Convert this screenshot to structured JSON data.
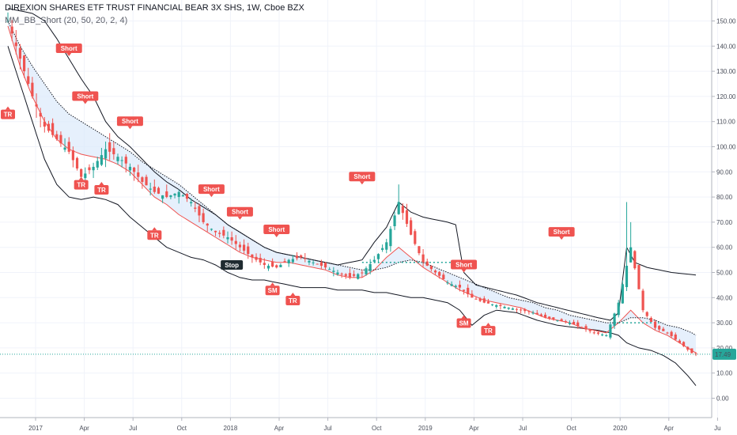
{
  "header": {
    "symbol_line": "DIREXION SHARES ETF TRUST FINANCIAL BEAR 3X SHS, 1W, Cboe BZX",
    "study_line": "MM_BB_Short (20, 50, 20, 2, 4)"
  },
  "colors": {
    "up": "#26a69a",
    "down": "#ef5350",
    "band": "#131722",
    "fill": "#dbe9fb",
    "ma_red": "#ef5350",
    "last_price": "#26a69a",
    "teal_dots": "#26a69a"
  },
  "last_price_label": "17.49",
  "chart_data": {
    "type": "candlestick",
    "title": "DIREXION SHARES ETF TRUST FINANCIAL BEAR 3X SHS, 1W, Cboe BZX",
    "ylim": [
      -5,
      160
    ],
    "yticks": [
      "0.00",
      "10.00",
      "20.00",
      "30.00",
      "40.00",
      "50.00",
      "60.00",
      "70.00",
      "80.00",
      "90.00",
      "100.00",
      "110.00",
      "120.00",
      "130.00",
      "140.00",
      "150.00"
    ],
    "xticks": [
      "2017",
      "Apr",
      "Jul",
      "Oct",
      "2018",
      "Apr",
      "Jul",
      "Oct",
      "2019",
      "Apr",
      "Jul",
      "Oct",
      "2020",
      "Apr",
      "Ju"
    ],
    "grid": true,
    "last_price": 17.49,
    "close_path": [
      [
        0,
        150
      ],
      [
        3,
        135
      ],
      [
        6,
        120
      ],
      [
        9,
        108
      ],
      [
        12,
        103
      ],
      [
        15,
        98
      ],
      [
        18,
        88
      ],
      [
        21,
        92
      ],
      [
        24,
        99
      ],
      [
        27,
        96
      ],
      [
        30,
        92
      ],
      [
        33,
        86
      ],
      [
        36,
        82
      ],
      [
        39,
        80
      ],
      [
        42,
        82
      ],
      [
        45,
        78
      ],
      [
        48,
        70
      ],
      [
        51,
        66
      ],
      [
        54,
        64
      ],
      [
        57,
        60
      ],
      [
        60,
        56
      ],
      [
        63,
        53
      ],
      [
        66,
        52
      ],
      [
        69,
        55
      ],
      [
        72,
        56
      ],
      [
        75,
        54
      ],
      [
        78,
        52
      ],
      [
        81,
        50
      ],
      [
        84,
        48
      ],
      [
        87,
        50
      ],
      [
        90,
        55
      ],
      [
        93,
        62
      ],
      [
        96,
        78
      ],
      [
        99,
        65
      ],
      [
        102,
        54
      ],
      [
        105,
        50
      ],
      [
        108,
        46
      ],
      [
        111,
        44
      ],
      [
        114,
        40
      ],
      [
        117,
        38
      ],
      [
        120,
        37
      ],
      [
        123,
        36
      ],
      [
        126,
        35
      ],
      [
        129,
        34
      ],
      [
        132,
        32
      ],
      [
        135,
        31
      ],
      [
        138,
        30
      ],
      [
        141,
        28
      ],
      [
        144,
        26
      ],
      [
        147,
        25
      ],
      [
        150,
        38
      ],
      [
        153,
        60
      ],
      [
        156,
        35
      ],
      [
        159,
        28
      ],
      [
        162,
        26
      ],
      [
        165,
        22
      ],
      [
        168,
        18
      ],
      [
        169,
        17.49
      ]
    ],
    "wick_spikes": [
      [
        96,
        85
      ],
      [
        152,
        78
      ],
      [
        153,
        70
      ]
    ],
    "upper_band": [
      [
        0,
        155
      ],
      [
        6,
        153
      ],
      [
        9,
        150
      ],
      [
        12,
        143
      ],
      [
        15,
        135
      ],
      [
        18,
        127
      ],
      [
        21,
        120
      ],
      [
        24,
        110
      ],
      [
        27,
        104
      ],
      [
        30,
        100
      ],
      [
        33,
        95
      ],
      [
        36,
        90
      ],
      [
        39,
        86
      ],
      [
        42,
        83
      ],
      [
        45,
        79
      ],
      [
        48,
        76
      ],
      [
        51,
        73
      ],
      [
        54,
        69
      ],
      [
        57,
        66
      ],
      [
        60,
        63
      ],
      [
        63,
        60
      ],
      [
        66,
        58
      ],
      [
        69,
        57
      ],
      [
        72,
        56
      ],
      [
        75,
        55
      ],
      [
        78,
        54
      ],
      [
        81,
        53
      ],
      [
        84,
        54
      ],
      [
        87,
        55
      ],
      [
        90,
        62
      ],
      [
        93,
        68
      ],
      [
        96,
        78
      ],
      [
        99,
        74
      ],
      [
        102,
        72
      ],
      [
        105,
        71
      ],
      [
        108,
        70
      ],
      [
        110,
        69
      ],
      [
        112,
        50
      ],
      [
        115,
        45
      ],
      [
        120,
        43
      ],
      [
        125,
        41
      ],
      [
        130,
        38
      ],
      [
        135,
        36
      ],
      [
        140,
        34
      ],
      [
        145,
        32
      ],
      [
        148,
        31
      ],
      [
        150,
        34
      ],
      [
        152,
        60
      ],
      [
        154,
        54
      ],
      [
        157,
        52
      ],
      [
        160,
        51
      ],
      [
        163,
        50
      ],
      [
        166,
        49.5
      ],
      [
        169,
        49
      ]
    ],
    "lower_band": [
      [
        0,
        140
      ],
      [
        3,
        125
      ],
      [
        6,
        110
      ],
      [
        9,
        95
      ],
      [
        12,
        85
      ],
      [
        15,
        80
      ],
      [
        18,
        79
      ],
      [
        21,
        80
      ],
      [
        24,
        79
      ],
      [
        27,
        77
      ],
      [
        30,
        72
      ],
      [
        33,
        68
      ],
      [
        36,
        64
      ],
      [
        39,
        60
      ],
      [
        42,
        58
      ],
      [
        45,
        56
      ],
      [
        48,
        55
      ],
      [
        51,
        53
      ],
      [
        54,
        50
      ],
      [
        57,
        48
      ],
      [
        60,
        47
      ],
      [
        63,
        47
      ],
      [
        66,
        46
      ],
      [
        69,
        45
      ],
      [
        72,
        44
      ],
      [
        75,
        44
      ],
      [
        78,
        44
      ],
      [
        81,
        43
      ],
      [
        84,
        43
      ],
      [
        87,
        43
      ],
      [
        90,
        42
      ],
      [
        93,
        42
      ],
      [
        96,
        41
      ],
      [
        99,
        40
      ],
      [
        102,
        40
      ],
      [
        105,
        39
      ],
      [
        108,
        38
      ],
      [
        111,
        35
      ],
      [
        114,
        29
      ],
      [
        117,
        33
      ],
      [
        120,
        35
      ],
      [
        125,
        34
      ],
      [
        130,
        31
      ],
      [
        135,
        29
      ],
      [
        140,
        28
      ],
      [
        145,
        27
      ],
      [
        148,
        26
      ],
      [
        150,
        25
      ],
      [
        152,
        22
      ],
      [
        155,
        20
      ],
      [
        158,
        19
      ],
      [
        161,
        17
      ],
      [
        164,
        14
      ],
      [
        167,
        9
      ],
      [
        169,
        5
      ]
    ],
    "ma_fast": [
      [
        0,
        148
      ],
      [
        3,
        132
      ],
      [
        6,
        120
      ],
      [
        9,
        110
      ],
      [
        12,
        103
      ],
      [
        15,
        99
      ],
      [
        18,
        97
      ],
      [
        21,
        96
      ],
      [
        24,
        95
      ],
      [
        27,
        93
      ],
      [
        30,
        90
      ],
      [
        33,
        85
      ],
      [
        36,
        80
      ],
      [
        39,
        77
      ],
      [
        42,
        73
      ],
      [
        45,
        70
      ],
      [
        48,
        67
      ],
      [
        51,
        64
      ],
      [
        54,
        61
      ],
      [
        57,
        58
      ],
      [
        60,
        56
      ],
      [
        63,
        55
      ],
      [
        66,
        54
      ],
      [
        69,
        54
      ],
      [
        72,
        53
      ],
      [
        75,
        52
      ],
      [
        78,
        51
      ],
      [
        81,
        49
      ],
      [
        84,
        48
      ],
      [
        87,
        48
      ],
      [
        90,
        51
      ],
      [
        93,
        56
      ],
      [
        96,
        60
      ],
      [
        99,
        56
      ],
      [
        102,
        52
      ],
      [
        105,
        49
      ],
      [
        108,
        46
      ],
      [
        111,
        43
      ],
      [
        114,
        41
      ],
      [
        117,
        39
      ],
      [
        120,
        38
      ],
      [
        123,
        37
      ],
      [
        126,
        36
      ],
      [
        129,
        34
      ],
      [
        132,
        32
      ],
      [
        135,
        31
      ],
      [
        138,
        30
      ],
      [
        141,
        28
      ],
      [
        144,
        27
      ],
      [
        147,
        26
      ],
      [
        150,
        30
      ],
      [
        153,
        35
      ],
      [
        156,
        30
      ],
      [
        159,
        27
      ],
      [
        162,
        25
      ],
      [
        165,
        22
      ],
      [
        168,
        19
      ],
      [
        169,
        18
      ]
    ],
    "ma_slow": [
      [
        0,
        150
      ],
      [
        3,
        140
      ],
      [
        6,
        132
      ],
      [
        9,
        125
      ],
      [
        12,
        118
      ],
      [
        15,
        113
      ],
      [
        18,
        110
      ],
      [
        21,
        107
      ],
      [
        24,
        104
      ],
      [
        27,
        101
      ],
      [
        30,
        98
      ],
      [
        33,
        94
      ],
      [
        36,
        91
      ],
      [
        39,
        88
      ],
      [
        42,
        85
      ],
      [
        45,
        81
      ],
      [
        48,
        77
      ],
      [
        51,
        73
      ],
      [
        54,
        69
      ],
      [
        57,
        66
      ],
      [
        60,
        63
      ],
      [
        63,
        60
      ],
      [
        66,
        58
      ],
      [
        69,
        57
      ],
      [
        72,
        56
      ],
      [
        75,
        55
      ],
      [
        78,
        54
      ],
      [
        81,
        53
      ],
      [
        84,
        52
      ],
      [
        87,
        51
      ],
      [
        90,
        51
      ],
      [
        93,
        52
      ],
      [
        96,
        54
      ],
      [
        99,
        55
      ],
      [
        102,
        54
      ],
      [
        105,
        52
      ],
      [
        108,
        50
      ],
      [
        111,
        48
      ],
      [
        114,
        46
      ],
      [
        117,
        44
      ],
      [
        120,
        42
      ],
      [
        123,
        40
      ],
      [
        126,
        39
      ],
      [
        129,
        38
      ],
      [
        132,
        36
      ],
      [
        135,
        35
      ],
      [
        138,
        33
      ],
      [
        141,
        32
      ],
      [
        144,
        31
      ],
      [
        147,
        30
      ],
      [
        150,
        30
      ],
      [
        153,
        32
      ],
      [
        156,
        32
      ],
      [
        159,
        31
      ],
      [
        162,
        29
      ],
      [
        165,
        28
      ],
      [
        168,
        26
      ],
      [
        169,
        25
      ]
    ],
    "annotations": [
      {
        "text": "TR",
        "i": 0,
        "y": 116,
        "pos": "below"
      },
      {
        "text": "Short",
        "i": 15,
        "y": 136,
        "pos": "above"
      },
      {
        "text": "Short",
        "i": 19,
        "y": 117,
        "pos": "above"
      },
      {
        "text": "Short",
        "i": 30,
        "y": 107,
        "pos": "above"
      },
      {
        "text": "TR",
        "i": 18,
        "y": 88,
        "pos": "below"
      },
      {
        "text": "TR",
        "i": 23,
        "y": 86,
        "pos": "below"
      },
      {
        "text": "TR",
        "i": 36,
        "y": 68,
        "pos": "below"
      },
      {
        "text": "Short",
        "i": 50,
        "y": 80,
        "pos": "above"
      },
      {
        "text": "Short",
        "i": 57,
        "y": 71,
        "pos": "above"
      },
      {
        "text": "Short",
        "i": 66,
        "y": 64,
        "pos": "above"
      },
      {
        "text": "Stop",
        "i": 55,
        "y": 53,
        "pos": "at",
        "dark": true
      },
      {
        "text": "SM",
        "i": 65,
        "y": 46,
        "pos": "below"
      },
      {
        "text": "TR",
        "i": 70,
        "y": 42,
        "pos": "below"
      },
      {
        "text": "Short",
        "i": 87,
        "y": 85,
        "pos": "above"
      },
      {
        "text": "Short",
        "i": 112,
        "y": 50,
        "pos": "above"
      },
      {
        "text": "SM",
        "i": 112,
        "y": 33,
        "pos": "below"
      },
      {
        "text": "TR",
        "i": 118,
        "y": 30,
        "pos": "below"
      },
      {
        "text": "Short",
        "i": 136,
        "y": 63,
        "pos": "above"
      }
    ],
    "teal_dotted": [
      {
        "i0": 87,
        "i1": 111,
        "y": 54
      },
      {
        "i0": 149,
        "i1": 160,
        "y": 30
      }
    ]
  }
}
